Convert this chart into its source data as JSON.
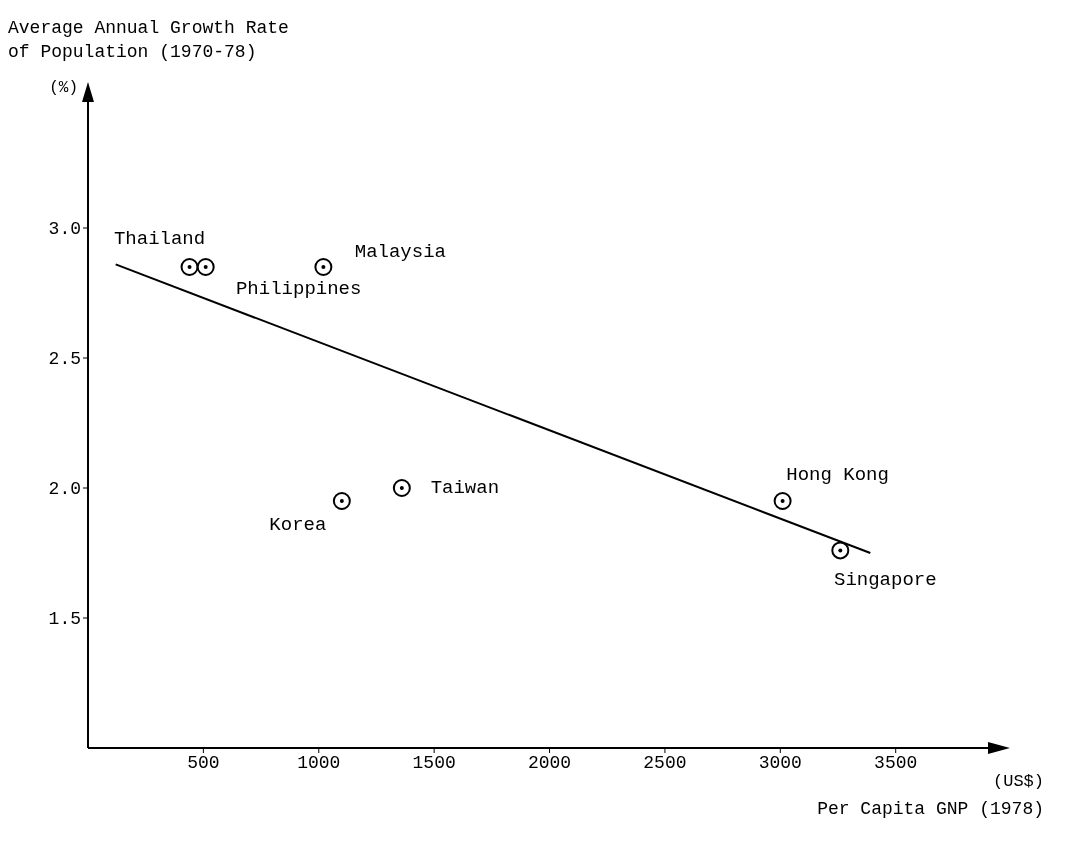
{
  "chart_data": {
    "type": "scatter",
    "xlabel": "Per Capita GNP (1978)",
    "ylabel": "Average Annual Growth Rate of Population (1970-78)",
    "xlim": [
      0,
      3900
    ],
    "xticks": [
      500,
      1000,
      1500,
      2000,
      2500,
      3000,
      3500
    ],
    "ylim": [
      1,
      3.5
    ],
    "yticks": [
      1.5,
      2.5,
      {
        "value": 2,
        "label": "2.0"
      },
      {
        "value": 3,
        "label": "3.0"
      }
    ],
    "series": [
      {
        "color": "#000000",
        "marker": "circle",
        "x": [
          440,
          510,
          1020,
          1100,
          1360,
          3010,
          3260
        ],
        "values": [
          2.85,
          2.85,
          2.85,
          1.95,
          2.0,
          1.95,
          1.76
        ]
      },
      {
        "type": "line",
        "color": "#000000",
        "marker": "none",
        "x": [
          120,
          3390
        ],
        "values": [
          2.86,
          1.75
        ]
      }
    ],
    "annotations": [
      {
        "text": "Thailand",
        "x": 440,
        "y": 2.85
      },
      {
        "text": "Philippines",
        "x": 510,
        "y": 2.85
      },
      {
        "text": "Malaysia",
        "x": 1020,
        "y": 2.85
      },
      {
        "text": "Korea",
        "x": 1100,
        "y": 1.95
      },
      {
        "text": "Taiwan",
        "x": 1360,
        "y": 2.0
      },
      {
        "text": "Hong Kong",
        "x": 3010,
        "y": 1.95
      },
      {
        "text": "Singapore",
        "x": 3260,
        "y": 1.76
      },
      "(%)",
      "(US$)"
    ]
  }
}
